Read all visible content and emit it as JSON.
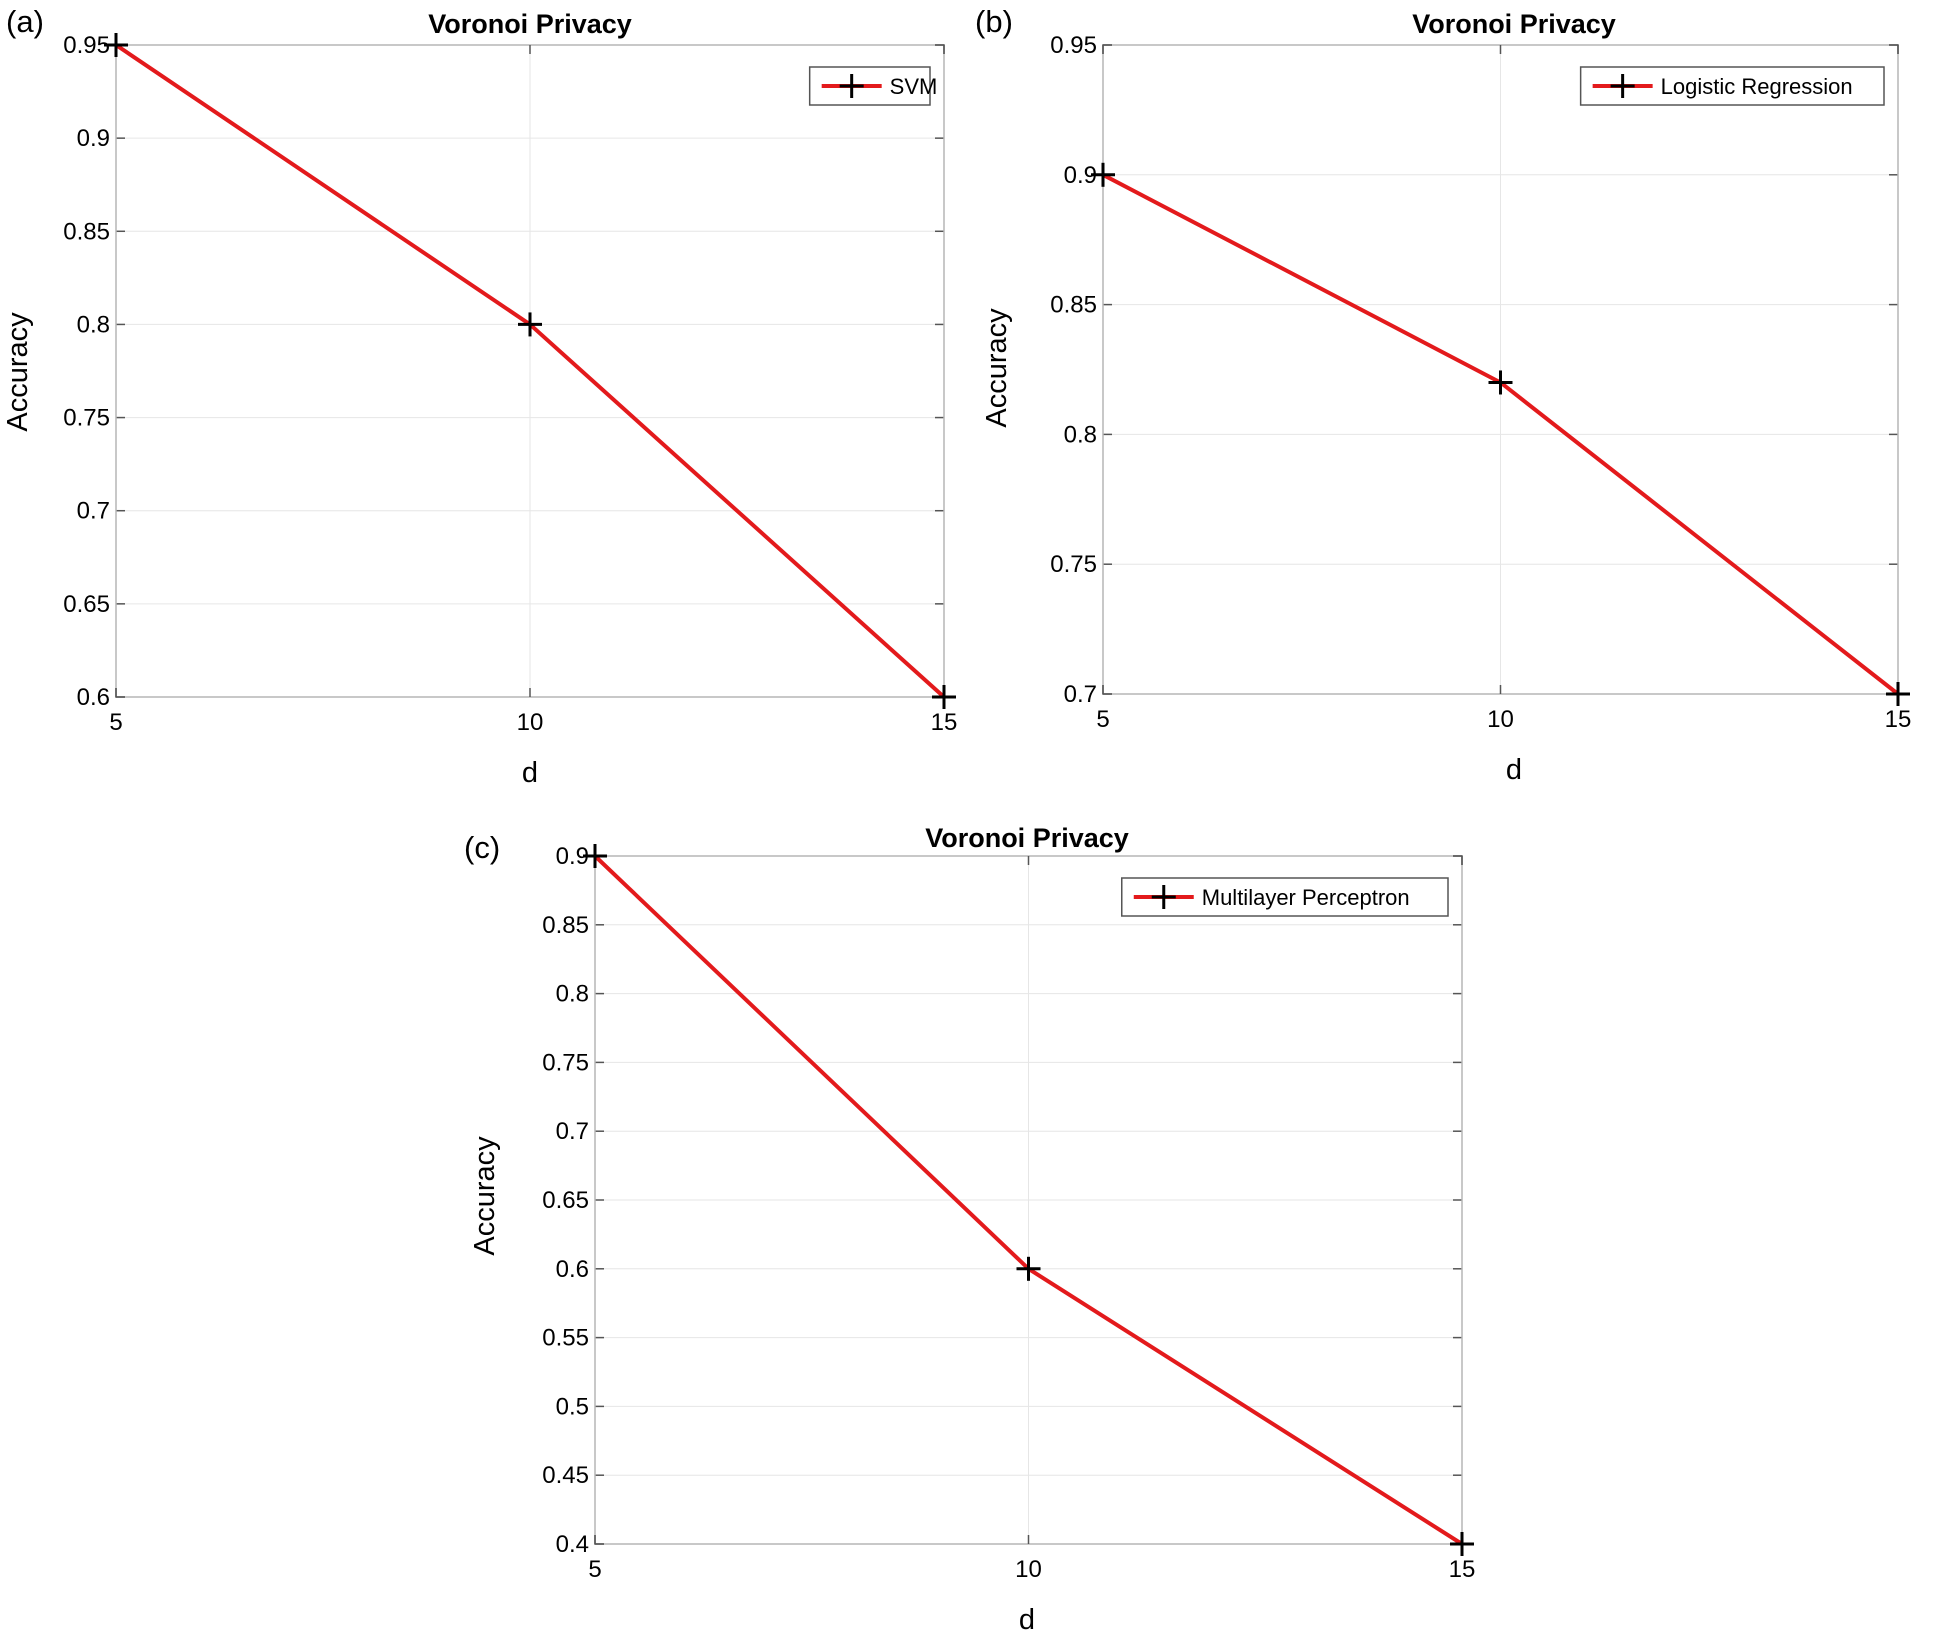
{
  "chart_data": [
    {
      "panel_label": "(a)",
      "type": "line",
      "title": "Voronoi Privacy",
      "xlabel": "d",
      "ylabel": "Accuracy",
      "x": [
        5,
        10,
        15
      ],
      "xticks": [
        "5",
        "10",
        "15"
      ],
      "xlim": [
        5,
        15
      ],
      "yticks": [
        "0.6",
        "0.65",
        "0.7",
        "0.75",
        "0.8",
        "0.85",
        "0.9",
        "0.95"
      ],
      "ylim": [
        0.6,
        0.95
      ],
      "grid": true,
      "legend_position": "top-right",
      "series": [
        {
          "name": "SVM",
          "values": [
            0.95,
            0.8,
            0.6
          ],
          "color": "#e31a1c",
          "marker": "plus"
        }
      ]
    },
    {
      "panel_label": "(b)",
      "type": "line",
      "title": "Voronoi Privacy",
      "xlabel": "d",
      "ylabel": "Accuracy",
      "x": [
        5,
        10,
        15
      ],
      "xticks": [
        "5",
        "10",
        "15"
      ],
      "xlim": [
        5,
        15
      ],
      "yticks": [
        "0.7",
        "0.75",
        "0.8",
        "0.85",
        "0.9",
        "0.95"
      ],
      "ylim": [
        0.7,
        0.95
      ],
      "grid": true,
      "legend_position": "top-right",
      "series": [
        {
          "name": "Logistic Regression",
          "values": [
            0.9,
            0.82,
            0.7
          ],
          "color": "#e31a1c",
          "marker": "plus"
        }
      ]
    },
    {
      "panel_label": "(c)",
      "type": "line",
      "title": "Voronoi Privacy",
      "xlabel": "d",
      "ylabel": "Accuracy",
      "x": [
        5,
        10,
        15
      ],
      "xticks": [
        "5",
        "10",
        "15"
      ],
      "xlim": [
        5,
        15
      ],
      "yticks": [
        "0.4",
        "0.45",
        "0.5",
        "0.55",
        "0.6",
        "0.65",
        "0.7",
        "0.75",
        "0.8",
        "0.85",
        "0.9"
      ],
      "ylim": [
        0.4,
        0.9
      ],
      "grid": true,
      "legend_position": "top-right",
      "series": [
        {
          "name": "Multilayer Perceptron",
          "values": [
            0.9,
            0.6,
            0.4
          ],
          "color": "#e31a1c",
          "marker": "plus"
        }
      ]
    }
  ]
}
